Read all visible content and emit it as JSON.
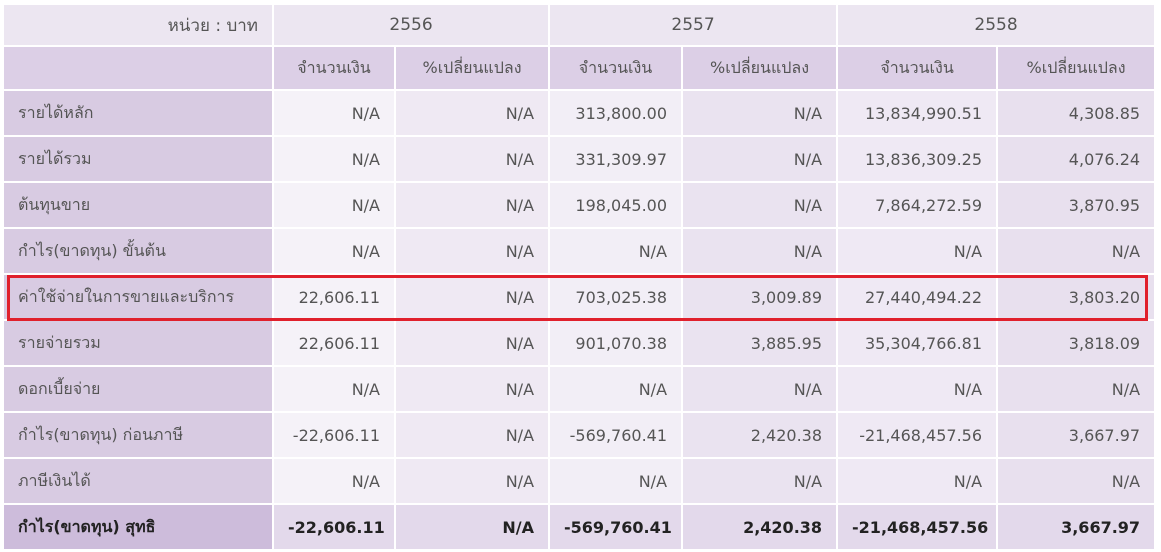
{
  "unit_label": "หน่วย : บาท",
  "years": [
    "2556",
    "2557",
    "2558"
  ],
  "subheaders": [
    "จำนวนเงิน",
    "%เปลี่ยนแปลง"
  ],
  "rows": [
    {
      "label": "รายได้หลัก",
      "values": [
        "N/A",
        "N/A",
        "313,800.00",
        "N/A",
        "13,834,990.51",
        "4,308.85"
      ]
    },
    {
      "label": "รายได้รวม",
      "values": [
        "N/A",
        "N/A",
        "331,309.97",
        "N/A",
        "13,836,309.25",
        "4,076.24"
      ]
    },
    {
      "label": "ต้นทุนขาย",
      "values": [
        "N/A",
        "N/A",
        "198,045.00",
        "N/A",
        "7,864,272.59",
        "3,870.95"
      ]
    },
    {
      "label": "กำไร(ขาดทุน) ขั้นต้น",
      "values": [
        "N/A",
        "N/A",
        "N/A",
        "N/A",
        "N/A",
        "N/A"
      ]
    },
    {
      "label": "ค่าใช้จ่ายในการขายและบริการ",
      "values": [
        "22,606.11",
        "N/A",
        "703,025.38",
        "3,009.89",
        "27,440,494.22",
        "3,803.20"
      ]
    },
    {
      "label": "รายจ่ายรวม",
      "values": [
        "22,606.11",
        "N/A",
        "901,070.38",
        "3,885.95",
        "35,304,766.81",
        "3,818.09"
      ]
    },
    {
      "label": "ดอกเบี้ยจ่าย",
      "values": [
        "N/A",
        "N/A",
        "N/A",
        "N/A",
        "N/A",
        "N/A"
      ]
    },
    {
      "label": "กำไร(ขาดทุน) ก่อนภาษี",
      "values": [
        "-22,606.11",
        "N/A",
        "-569,760.41",
        "2,420.38",
        "-21,468,457.56",
        "3,667.97"
      ]
    },
    {
      "label": "ภาษีเงินได้",
      "values": [
        "N/A",
        "N/A",
        "N/A",
        "N/A",
        "N/A",
        "N/A"
      ]
    }
  ],
  "total_row": {
    "label": "กำไร(ขาดทุน) สุทธิ",
    "values": [
      "-22,606.11",
      "N/A",
      "-569,760.41",
      "2,420.38",
      "-21,468,457.56",
      "3,667.97"
    ]
  },
  "colors": {
    "highlight_border": "#e0202c",
    "label_bg": "#d8cbe2",
    "header_bg": "#dccfe6"
  }
}
